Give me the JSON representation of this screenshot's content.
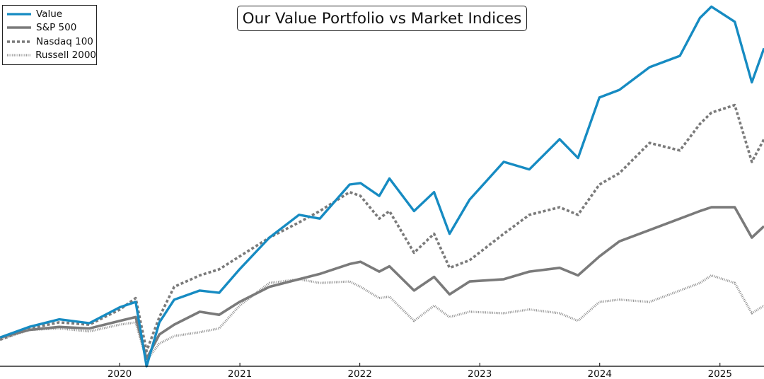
{
  "chart_data": {
    "type": "line",
    "title": "Our Value Portfolio vs Market Indices",
    "xlabel": "",
    "ylabel": "",
    "x_range": [
      "2019-01-02",
      "2025-05-15"
    ],
    "ylim": [
      0,
      480
    ],
    "x_ticks": [
      "2020",
      "2021",
      "2022",
      "2023",
      "2024",
      "2025"
    ],
    "y_ticks_shown": false,
    "grid": false,
    "legend_position": "top-left",
    "series": [
      {
        "name": "Value",
        "color": "#168bc2",
        "style": "solid",
        "points": [
          [
            "2019-01-02",
            38
          ],
          [
            "2019-04-01",
            52
          ],
          [
            "2019-07-01",
            62
          ],
          [
            "2019-10-01",
            57
          ],
          [
            "2020-01-02",
            78
          ],
          [
            "2020-02-19",
            85
          ],
          [
            "2020-03-23",
            0
          ],
          [
            "2020-05-01",
            58
          ],
          [
            "2020-06-15",
            88
          ],
          [
            "2020-09-01",
            100
          ],
          [
            "2020-10-30",
            97
          ],
          [
            "2020-12-31",
            128
          ],
          [
            "2021-04-01",
            170
          ],
          [
            "2021-06-30",
            200
          ],
          [
            "2021-09-01",
            195
          ],
          [
            "2021-12-01",
            240
          ],
          [
            "2022-01-03",
            242
          ],
          [
            "2022-03-01",
            225
          ],
          [
            "2022-04-01",
            248
          ],
          [
            "2022-06-15",
            205
          ],
          [
            "2022-08-15",
            230
          ],
          [
            "2022-10-01",
            175
          ],
          [
            "2022-12-01",
            220
          ],
          [
            "2023-03-15",
            270
          ],
          [
            "2023-06-01",
            260
          ],
          [
            "2023-09-01",
            300
          ],
          [
            "2023-10-27",
            275
          ],
          [
            "2023-12-31",
            355
          ],
          [
            "2024-03-01",
            365
          ],
          [
            "2024-06-01",
            395
          ],
          [
            "2024-09-01",
            410
          ],
          [
            "2024-11-01",
            460
          ],
          [
            "2024-12-06",
            475
          ],
          [
            "2025-02-15",
            455
          ],
          [
            "2025-04-08",
            375
          ],
          [
            "2025-05-15",
            420
          ]
        ]
      },
      {
        "name": "S&P 500",
        "color": "#7a7a7a",
        "style": "solid",
        "points": [
          [
            "2019-01-02",
            38
          ],
          [
            "2019-04-01",
            48
          ],
          [
            "2019-07-01",
            52
          ],
          [
            "2019-10-01",
            50
          ],
          [
            "2020-01-02",
            60
          ],
          [
            "2020-02-19",
            65
          ],
          [
            "2020-03-23",
            10
          ],
          [
            "2020-05-01",
            42
          ],
          [
            "2020-06-15",
            55
          ],
          [
            "2020-09-01",
            72
          ],
          [
            "2020-10-30",
            68
          ],
          [
            "2020-12-31",
            85
          ],
          [
            "2021-04-01",
            105
          ],
          [
            "2021-06-30",
            115
          ],
          [
            "2021-09-01",
            122
          ],
          [
            "2021-12-01",
            135
          ],
          [
            "2022-01-03",
            138
          ],
          [
            "2022-03-01",
            125
          ],
          [
            "2022-04-01",
            132
          ],
          [
            "2022-06-15",
            100
          ],
          [
            "2022-08-15",
            118
          ],
          [
            "2022-10-01",
            95
          ],
          [
            "2022-12-01",
            112
          ],
          [
            "2023-03-15",
            115
          ],
          [
            "2023-06-01",
            125
          ],
          [
            "2023-09-01",
            130
          ],
          [
            "2023-10-27",
            120
          ],
          [
            "2023-12-31",
            145
          ],
          [
            "2024-03-01",
            165
          ],
          [
            "2024-06-01",
            180
          ],
          [
            "2024-09-01",
            195
          ],
          [
            "2024-11-01",
            205
          ],
          [
            "2024-12-06",
            210
          ],
          [
            "2025-02-15",
            210
          ],
          [
            "2025-04-08",
            170
          ],
          [
            "2025-05-15",
            185
          ]
        ]
      },
      {
        "name": "Nasdaq 100",
        "color": "#7a7a7a",
        "style": "dashed",
        "points": [
          [
            "2019-01-02",
            35
          ],
          [
            "2019-04-01",
            50
          ],
          [
            "2019-07-01",
            58
          ],
          [
            "2019-10-01",
            55
          ],
          [
            "2020-01-02",
            75
          ],
          [
            "2020-02-19",
            90
          ],
          [
            "2020-03-23",
            20
          ],
          [
            "2020-05-01",
            65
          ],
          [
            "2020-06-15",
            105
          ],
          [
            "2020-09-01",
            120
          ],
          [
            "2020-10-30",
            128
          ],
          [
            "2020-12-31",
            145
          ],
          [
            "2021-04-01",
            170
          ],
          [
            "2021-06-30",
            190
          ],
          [
            "2021-09-01",
            205
          ],
          [
            "2021-12-01",
            230
          ],
          [
            "2022-01-03",
            225
          ],
          [
            "2022-03-01",
            195
          ],
          [
            "2022-04-01",
            205
          ],
          [
            "2022-06-15",
            150
          ],
          [
            "2022-08-15",
            175
          ],
          [
            "2022-10-01",
            130
          ],
          [
            "2022-12-01",
            140
          ],
          [
            "2023-03-15",
            175
          ],
          [
            "2023-06-01",
            200
          ],
          [
            "2023-09-01",
            210
          ],
          [
            "2023-10-27",
            200
          ],
          [
            "2023-12-31",
            240
          ],
          [
            "2024-03-01",
            255
          ],
          [
            "2024-06-01",
            295
          ],
          [
            "2024-09-01",
            285
          ],
          [
            "2024-11-01",
            320
          ],
          [
            "2024-12-06",
            335
          ],
          [
            "2025-02-15",
            345
          ],
          [
            "2025-04-08",
            270
          ],
          [
            "2025-05-15",
            300
          ]
        ]
      },
      {
        "name": "Russell 2000",
        "color": "#8f8f8f",
        "style": "dotted",
        "points": [
          [
            "2019-01-02",
            35
          ],
          [
            "2019-04-01",
            48
          ],
          [
            "2019-07-01",
            50
          ],
          [
            "2019-10-01",
            46
          ],
          [
            "2020-01-02",
            55
          ],
          [
            "2020-02-19",
            58
          ],
          [
            "2020-03-23",
            8
          ],
          [
            "2020-05-01",
            30
          ],
          [
            "2020-06-15",
            40
          ],
          [
            "2020-09-01",
            45
          ],
          [
            "2020-10-30",
            50
          ],
          [
            "2020-12-31",
            80
          ],
          [
            "2021-04-01",
            110
          ],
          [
            "2021-06-30",
            115
          ],
          [
            "2021-09-01",
            110
          ],
          [
            "2021-12-01",
            112
          ],
          [
            "2022-01-03",
            105
          ],
          [
            "2022-03-01",
            90
          ],
          [
            "2022-04-01",
            92
          ],
          [
            "2022-06-15",
            60
          ],
          [
            "2022-08-15",
            80
          ],
          [
            "2022-10-01",
            65
          ],
          [
            "2022-12-01",
            72
          ],
          [
            "2023-03-15",
            70
          ],
          [
            "2023-06-01",
            75
          ],
          [
            "2023-09-01",
            70
          ],
          [
            "2023-10-27",
            60
          ],
          [
            "2023-12-31",
            85
          ],
          [
            "2024-03-01",
            88
          ],
          [
            "2024-06-01",
            85
          ],
          [
            "2024-09-01",
            100
          ],
          [
            "2024-11-01",
            110
          ],
          [
            "2024-12-06",
            120
          ],
          [
            "2025-02-15",
            110
          ],
          [
            "2025-04-08",
            70
          ],
          [
            "2025-05-15",
            80
          ]
        ]
      }
    ]
  }
}
